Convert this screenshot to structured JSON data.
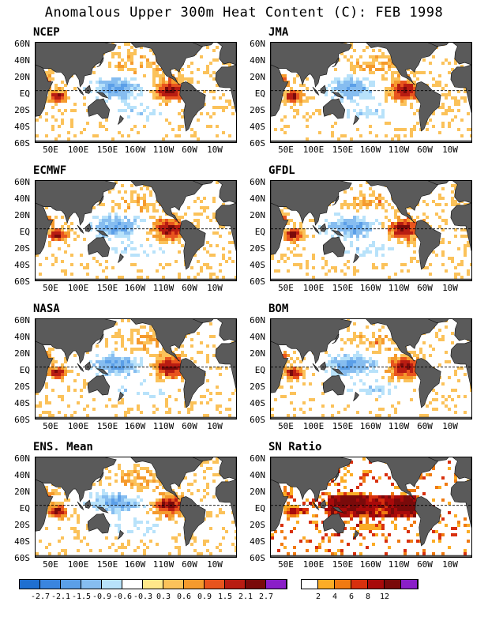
{
  "title": "Anomalous Upper 300m Heat Content (C): FEB 1998",
  "lat_labels": [
    "60N",
    "40N",
    "20N",
    "EQ",
    "20S",
    "40S",
    "60S"
  ],
  "lon_labels": [
    "50E",
    "100E",
    "150E",
    "160W",
    "110W",
    "60W",
    "10W"
  ],
  "panels": [
    {
      "label": "NCEP"
    },
    {
      "label": "JMA"
    },
    {
      "label": "ECMWF"
    },
    {
      "label": "GFDL"
    },
    {
      "label": "NASA"
    },
    {
      "label": "BOM"
    },
    {
      "label": "ENS. Mean"
    },
    {
      "label": "SN Ratio"
    }
  ],
  "colors": {
    "land": "#5a5a5a",
    "anomaly_scale": [
      "#1f6fd0",
      "#3a85df",
      "#5b9fe8",
      "#86bdf0",
      "#b8e2fa",
      "#ffffff",
      "#ffe88a",
      "#fbc25a",
      "#f59a2d",
      "#e8541e",
      "#b81c12",
      "#7a0a0a",
      "#8a1fc8"
    ],
    "sn_scale": [
      "#ffffff",
      "#fbac26",
      "#f07a12",
      "#d8300e",
      "#a80a0a",
      "#7a0a0a",
      "#8a1fc8"
    ]
  },
  "colorbar_anomaly": {
    "ticks": [
      "-2.7",
      "-2.1",
      "-1.5",
      "-0.9",
      "-0.6",
      "-0.3",
      "0.3",
      "0.6",
      "0.9",
      "1.5",
      "2.1",
      "2.7"
    ]
  },
  "colorbar_sn": {
    "ticks": [
      "2",
      "4",
      "6",
      "8",
      "12"
    ]
  }
}
